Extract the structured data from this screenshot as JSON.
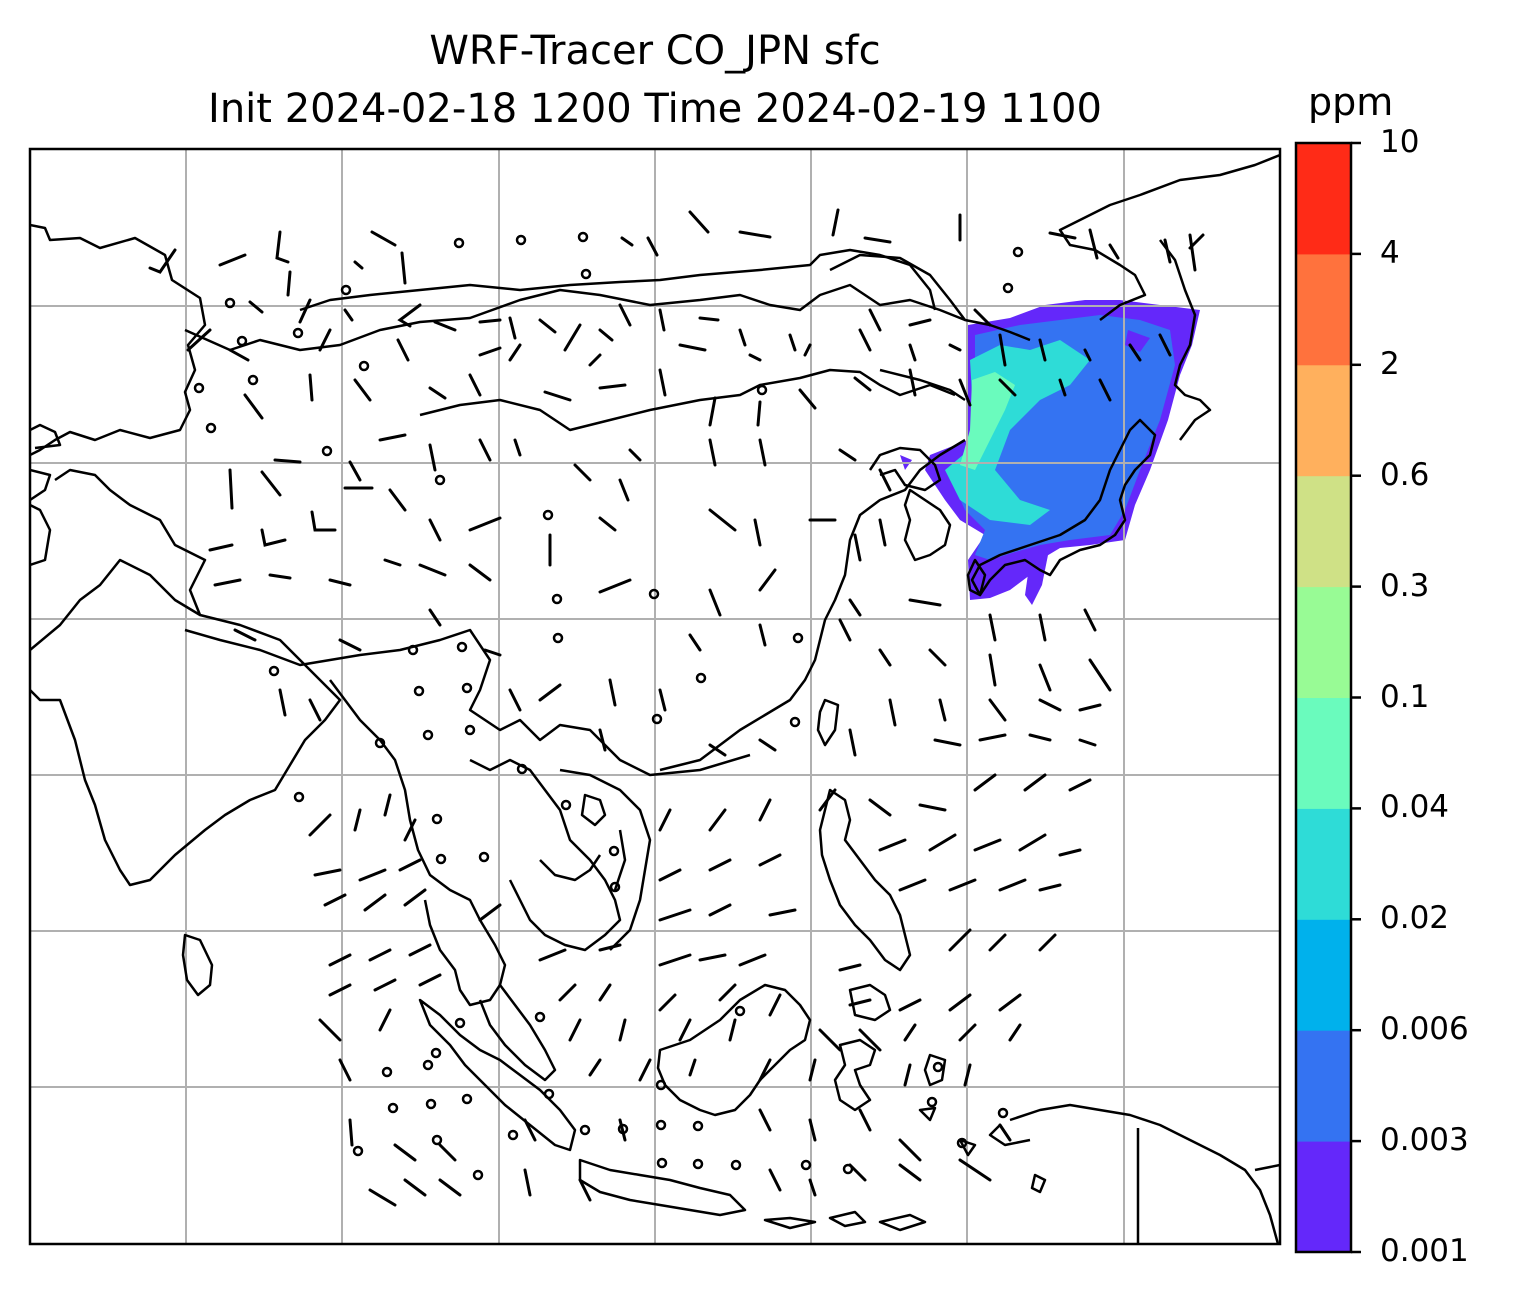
{
  "title_line1": "WRF-Tracer CO_JPN sfc",
  "title_line2": "Init 2024-02-18 1200 Time 2024-02-19 1100",
  "colorbar": {
    "unit": "ppm",
    "levels": [
      "0.001",
      "0.003",
      "0.006",
      "0.02",
      "0.04",
      "0.1",
      "0.3",
      "0.6",
      "2",
      "4",
      "10"
    ],
    "colors": [
      "#6428fa",
      "#3473f2",
      "#00b1ec",
      "#2edcd7",
      "#6afbbd",
      "#98fb95",
      "#cfe186",
      "#ffb05d",
      "#ff723d",
      "#ff2b17"
    ]
  },
  "map": {
    "gridlines": true,
    "coastline_color": "#000000",
    "tracer_plume_region": "Japan / Korea / Northeast China",
    "dominant_plume_colors": [
      "#3473f2",
      "#6428fa",
      "#2edcd7",
      "#6afbbd",
      "#00b1ec"
    ]
  }
}
